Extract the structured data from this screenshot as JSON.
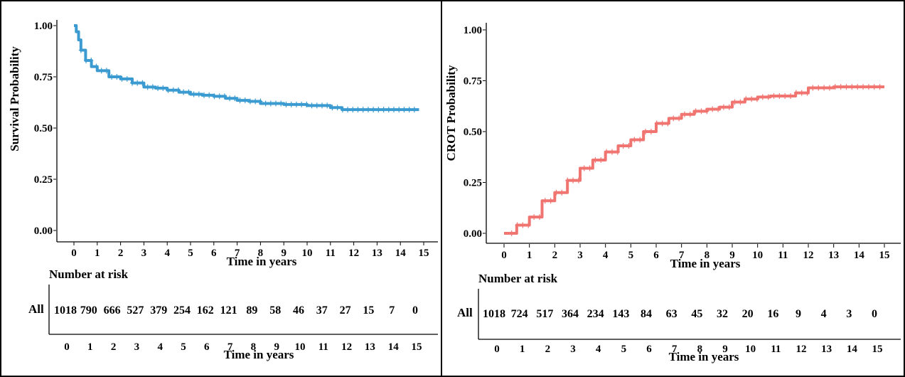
{
  "chart_data": [
    {
      "type": "line",
      "ylabel": "Survival Probability",
      "xlabel": "Time in years",
      "ylim": [
        0,
        1
      ],
      "xlim": [
        0,
        15
      ],
      "yticks": [
        "0.00",
        "0.25",
        "0.50",
        "0.75",
        "1.00"
      ],
      "xticks": [
        "0",
        "1",
        "2",
        "3",
        "4",
        "5",
        "6",
        "7",
        "8",
        "9",
        "10",
        "11",
        "12",
        "13",
        "14",
        "15"
      ],
      "color": "#3b9bd1",
      "censor_marks": true,
      "series": [
        {
          "x": [
            0,
            0.1,
            0.2,
            0.3,
            0.5,
            0.75,
            1.0,
            1.5,
            2,
            2.5,
            3,
            3.5,
            4,
            4.5,
            5,
            5.5,
            6,
            6.5,
            7,
            7.5,
            8,
            8.5,
            9,
            9.5,
            10,
            10.5,
            11,
            11.5,
            12,
            13,
            14,
            14.8
          ],
          "y": [
            1.0,
            0.97,
            0.93,
            0.88,
            0.83,
            0.8,
            0.78,
            0.75,
            0.74,
            0.72,
            0.7,
            0.695,
            0.685,
            0.675,
            0.665,
            0.66,
            0.655,
            0.645,
            0.635,
            0.63,
            0.62,
            0.62,
            0.615,
            0.615,
            0.61,
            0.61,
            0.6,
            0.59,
            0.59,
            0.59,
            0.59,
            0.59
          ]
        }
      ],
      "risk_table": {
        "title": "Number at risk",
        "label": "All",
        "counts": [
          "1018",
          "790",
          "666",
          "527",
          "379",
          "254",
          "162",
          "121",
          "89",
          "58",
          "46",
          "37",
          "27",
          "15",
          "7",
          "0"
        ],
        "xlabel": "Time in years"
      }
    },
    {
      "type": "line",
      "ylabel": "CROT Probability",
      "xlabel": "Time in years",
      "ylim": [
        0,
        1
      ],
      "xlim": [
        0,
        15
      ],
      "yticks": [
        "0.00",
        "0.25",
        "0.50",
        "0.75",
        "1.00"
      ],
      "xticks": [
        "0",
        "1",
        "2",
        "3",
        "4",
        "5",
        "6",
        "7",
        "8",
        "9",
        "10",
        "11",
        "12",
        "13",
        "14",
        "15"
      ],
      "color": "#f07470",
      "censor_marks": true,
      "series": [
        {
          "x": [
            0,
            0.5,
            1,
            1.5,
            2,
            2.5,
            3,
            3.5,
            4,
            4.5,
            5,
            5.5,
            6,
            6.5,
            7,
            7.5,
            8,
            8.5,
            9,
            9.5,
            10,
            10.5,
            11,
            11.5,
            12,
            13,
            14,
            15
          ],
          "y": [
            0.0,
            0.04,
            0.08,
            0.16,
            0.2,
            0.26,
            0.32,
            0.36,
            0.4,
            0.43,
            0.46,
            0.5,
            0.54,
            0.565,
            0.585,
            0.6,
            0.61,
            0.62,
            0.645,
            0.66,
            0.67,
            0.675,
            0.675,
            0.69,
            0.715,
            0.72,
            0.72,
            0.72
          ]
        }
      ],
      "risk_table": {
        "title": "Number at risk",
        "label": "All",
        "counts": [
          "1018",
          "724",
          "517",
          "364",
          "234",
          "143",
          "84",
          "63",
          "45",
          "32",
          "20",
          "16",
          "9",
          "4",
          "3",
          "0"
        ],
        "xlabel": "Time in years"
      }
    }
  ]
}
